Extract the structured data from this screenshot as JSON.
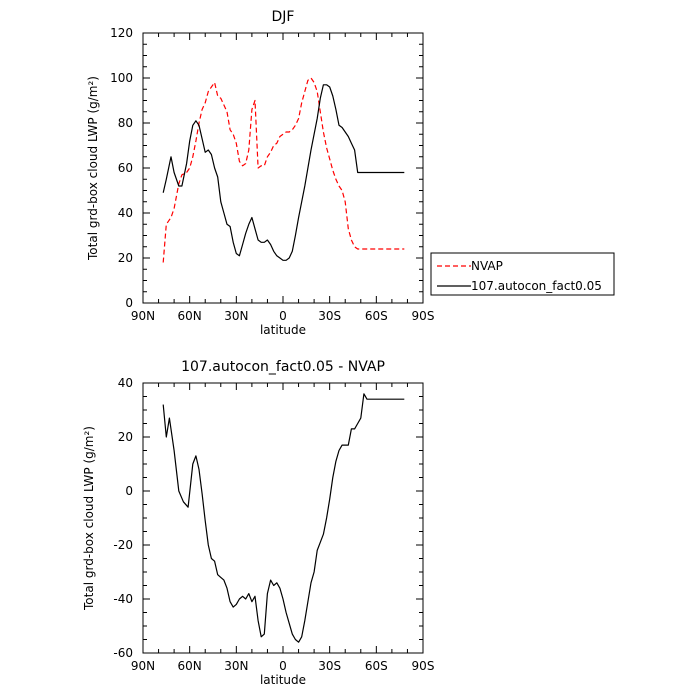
{
  "chart_data": [
    {
      "type": "line",
      "title": "DJF",
      "xlabel": "latitude",
      "ylabel": "Total grd-box cloud LWP (g/m²)",
      "xlim": [
        -90,
        90
      ],
      "ylim": [
        0,
        120
      ],
      "x_ticks": [
        -90,
        -60,
        -30,
        0,
        30,
        60,
        90
      ],
      "x_tick_labels": [
        "90N",
        "60N",
        "30N",
        "0",
        "30S",
        "60S",
        "90S"
      ],
      "y_ticks": [
        0,
        20,
        40,
        60,
        80,
        100,
        120
      ],
      "y_tick_labels": [
        "0",
        "20",
        "40",
        "60",
        "80",
        "100",
        "120"
      ],
      "legend_position": "right, outside plot",
      "series": [
        {
          "name": "NVAP",
          "color": "#ff0000",
          "dash": "dashed",
          "x": [
            -77,
            -75,
            -72,
            -70,
            -67,
            -65,
            -62,
            -60,
            -58,
            -56,
            -54,
            -52,
            -50,
            -48,
            -46,
            -44,
            -42,
            -40,
            -38,
            -36,
            -34,
            -32,
            -30,
            -28,
            -26,
            -24,
            -22,
            -20,
            -18,
            -16,
            -14,
            -12,
            -10,
            -8,
            -6,
            -4,
            -2,
            0,
            2,
            4,
            6,
            8,
            10,
            12,
            14,
            16,
            18,
            20,
            22,
            24,
            26,
            28,
            30,
            32,
            34,
            36,
            38,
            40,
            42,
            44,
            46,
            48,
            50,
            52,
            54,
            56,
            58,
            60,
            62,
            64,
            66,
            68,
            70,
            72,
            74,
            76,
            78
          ],
          "values": [
            18,
            35,
            38,
            42,
            53,
            57,
            58,
            60,
            65,
            72,
            80,
            86,
            89,
            94,
            96,
            98,
            92,
            91,
            88,
            85,
            77,
            75,
            71,
            63,
            61,
            62,
            68,
            86,
            90,
            60,
            61,
            61,
            65,
            67,
            70,
            71,
            74,
            75,
            76,
            76,
            77,
            79,
            82,
            89,
            94,
            99,
            100,
            98,
            94,
            85,
            76,
            69,
            64,
            59,
            55,
            52,
            50,
            45,
            33,
            28,
            25,
            24,
            24,
            24,
            24,
            24,
            24,
            24,
            24,
            24,
            24,
            24,
            24,
            24,
            24,
            24,
            24
          ]
        },
        {
          "name": "107.autocon_fact0.05",
          "color": "#000000",
          "dash": "solid",
          "x": [
            -77,
            -75,
            -72,
            -70,
            -67,
            -65,
            -62,
            -60,
            -58,
            -56,
            -54,
            -52,
            -50,
            -48,
            -46,
            -44,
            -42,
            -40,
            -38,
            -36,
            -34,
            -32,
            -30,
            -28,
            -26,
            -24,
            -22,
            -20,
            -18,
            -16,
            -14,
            -12,
            -10,
            -8,
            -6,
            -4,
            -2,
            0,
            2,
            4,
            6,
            8,
            10,
            12,
            14,
            16,
            18,
            20,
            22,
            24,
            26,
            28,
            30,
            32,
            34,
            36,
            38,
            40,
            42,
            44,
            46,
            48,
            50,
            52,
            54,
            56,
            58,
            60,
            62,
            64,
            66,
            68,
            70,
            72,
            74,
            76,
            78
          ],
          "values": [
            49,
            55,
            65,
            58,
            52,
            52,
            62,
            72,
            79,
            81,
            79,
            73,
            67,
            68,
            66,
            60,
            56,
            45,
            40,
            35,
            34,
            27,
            22,
            21,
            26,
            31,
            35,
            38,
            33,
            28,
            27,
            27,
            28,
            26,
            23,
            21,
            20,
            19,
            19,
            20,
            23,
            30,
            38,
            45,
            52,
            60,
            68,
            75,
            82,
            91,
            97,
            97,
            96,
            92,
            86,
            79,
            78,
            76,
            74,
            71,
            68,
            58,
            58,
            58,
            58,
            58,
            58,
            58,
            58,
            58,
            58,
            58,
            58,
            58,
            58,
            58,
            58
          ]
        }
      ]
    },
    {
      "type": "line",
      "title": "107.autocon_fact0.05 - NVAP",
      "xlabel": "latitude",
      "ylabel": "Total grd-box cloud LWP (g/m²)",
      "xlim": [
        -90,
        90
      ],
      "ylim": [
        -60,
        40
      ],
      "x_ticks": [
        -90,
        -60,
        -30,
        0,
        30,
        60,
        90
      ],
      "x_tick_labels": [
        "90N",
        "60N",
        "30N",
        "0",
        "30S",
        "60S",
        "90S"
      ],
      "y_ticks": [
        -60,
        -40,
        -20,
        0,
        20,
        40
      ],
      "y_tick_labels": [
        "-60",
        "-40",
        "-20",
        "0",
        "20",
        "40"
      ],
      "series": [
        {
          "color": "#000000",
          "dash": "solid",
          "x": [
            -77,
            -75,
            -73,
            -70,
            -67,
            -64,
            -61,
            -58,
            -56,
            -54,
            -52,
            -50,
            -48,
            -46,
            -44,
            -42,
            -40,
            -38,
            -36,
            -34,
            -32,
            -30,
            -28,
            -26,
            -24,
            -22,
            -20,
            -18,
            -16,
            -14,
            -12,
            -10,
            -8,
            -6,
            -4,
            -2,
            0,
            2,
            4,
            6,
            8,
            10,
            12,
            14,
            16,
            18,
            20,
            22,
            24,
            26,
            28,
            30,
            32,
            34,
            36,
            38,
            40,
            42,
            44,
            46,
            48,
            50,
            52,
            54,
            56,
            58,
            60,
            62,
            64,
            66,
            68,
            70,
            72,
            74,
            76,
            78
          ],
          "values": [
            32,
            20,
            27,
            15,
            0,
            -4,
            -6,
            10,
            13,
            8,
            -1,
            -11,
            -20,
            -25,
            -26,
            -31,
            -32,
            -33,
            -36,
            -41,
            -43,
            -42,
            -40,
            -39,
            -40,
            -38,
            -41,
            -39,
            -48,
            -54,
            -53,
            -38,
            -33,
            -35,
            -34,
            -36,
            -40,
            -45,
            -49,
            -53,
            -55,
            -56,
            -54,
            -48,
            -41,
            -34,
            -30,
            -22,
            -19,
            -16,
            -10,
            -3,
            5,
            11,
            15,
            17,
            17,
            17,
            23,
            23,
            25,
            27,
            36,
            34,
            34,
            34,
            34,
            34,
            34,
            34,
            34,
            34,
            34,
            34,
            34,
            34
          ]
        }
      ]
    }
  ]
}
